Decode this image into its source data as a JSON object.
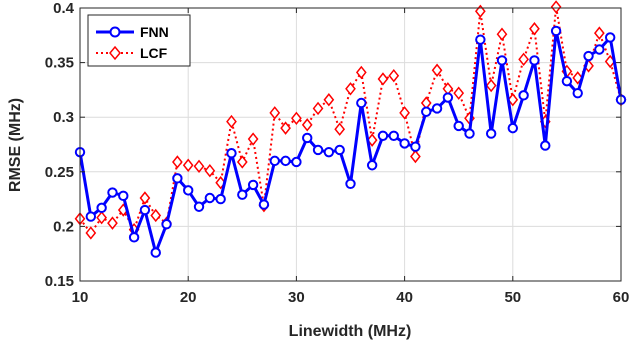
{
  "chart_data": {
    "type": "line",
    "xlabel": "Linewidth (MHz)",
    "ylabel": "RMSE (MHz)",
    "xlim": [
      10,
      60
    ],
    "ylim": [
      0.15,
      0.4
    ],
    "xticks": [
      10,
      20,
      30,
      40,
      50,
      60
    ],
    "yticks": [
      0.15,
      0.2,
      0.25,
      0.3,
      0.35,
      0.4
    ],
    "xtick_labels": [
      "10",
      "20",
      "30",
      "40",
      "50",
      "60"
    ],
    "ytick_labels": [
      "0.15",
      "0.2",
      "0.25",
      "0.3",
      "0.35",
      "0.4"
    ],
    "grid": true,
    "legend_position": "top-left",
    "x": [
      10,
      11,
      12,
      13,
      14,
      15,
      16,
      17,
      18,
      19,
      20,
      21,
      22,
      23,
      24,
      25,
      26,
      27,
      28,
      29,
      30,
      31,
      32,
      33,
      34,
      35,
      36,
      37,
      38,
      39,
      40,
      41,
      42,
      43,
      44,
      45,
      46,
      47,
      48,
      49,
      50,
      51,
      52,
      53,
      54,
      55,
      56,
      57,
      58,
      59,
      60
    ],
    "series": [
      {
        "name": "FNN",
        "color": "#0000ff",
        "line_style": "solid",
        "marker": "circle",
        "values": [
          0.268,
          0.209,
          0.217,
          0.231,
          0.228,
          0.19,
          0.215,
          0.176,
          0.202,
          0.244,
          0.233,
          0.218,
          0.226,
          0.225,
          0.267,
          0.229,
          0.238,
          0.22,
          0.26,
          0.26,
          0.259,
          0.281,
          0.27,
          0.268,
          0.27,
          0.239,
          0.313,
          0.256,
          0.283,
          0.283,
          0.276,
          0.273,
          0.305,
          0.308,
          0.318,
          0.292,
          0.285,
          0.371,
          0.285,
          0.352,
          0.29,
          0.32,
          0.352,
          0.274,
          0.379,
          0.333,
          0.322,
          0.356,
          0.362,
          0.373,
          0.316
        ]
      },
      {
        "name": "LCF",
        "color": "#ff0000",
        "line_style": "dotted",
        "marker": "diamond",
        "values": [
          0.207,
          0.194,
          0.208,
          0.203,
          0.215,
          0.197,
          0.226,
          0.21,
          0.203,
          0.259,
          0.256,
          0.255,
          0.251,
          0.24,
          0.296,
          0.259,
          0.28,
          0.219,
          0.304,
          0.29,
          0.299,
          0.293,
          0.308,
          0.316,
          0.289,
          0.326,
          0.341,
          0.279,
          0.335,
          0.338,
          0.304,
          0.264,
          0.313,
          0.343,
          0.326,
          0.322,
          0.299,
          0.397,
          0.329,
          0.376,
          0.316,
          0.353,
          0.381,
          0.296,
          0.401,
          0.342,
          0.336,
          0.347,
          0.377,
          0.351,
          0.316
        ]
      }
    ]
  }
}
